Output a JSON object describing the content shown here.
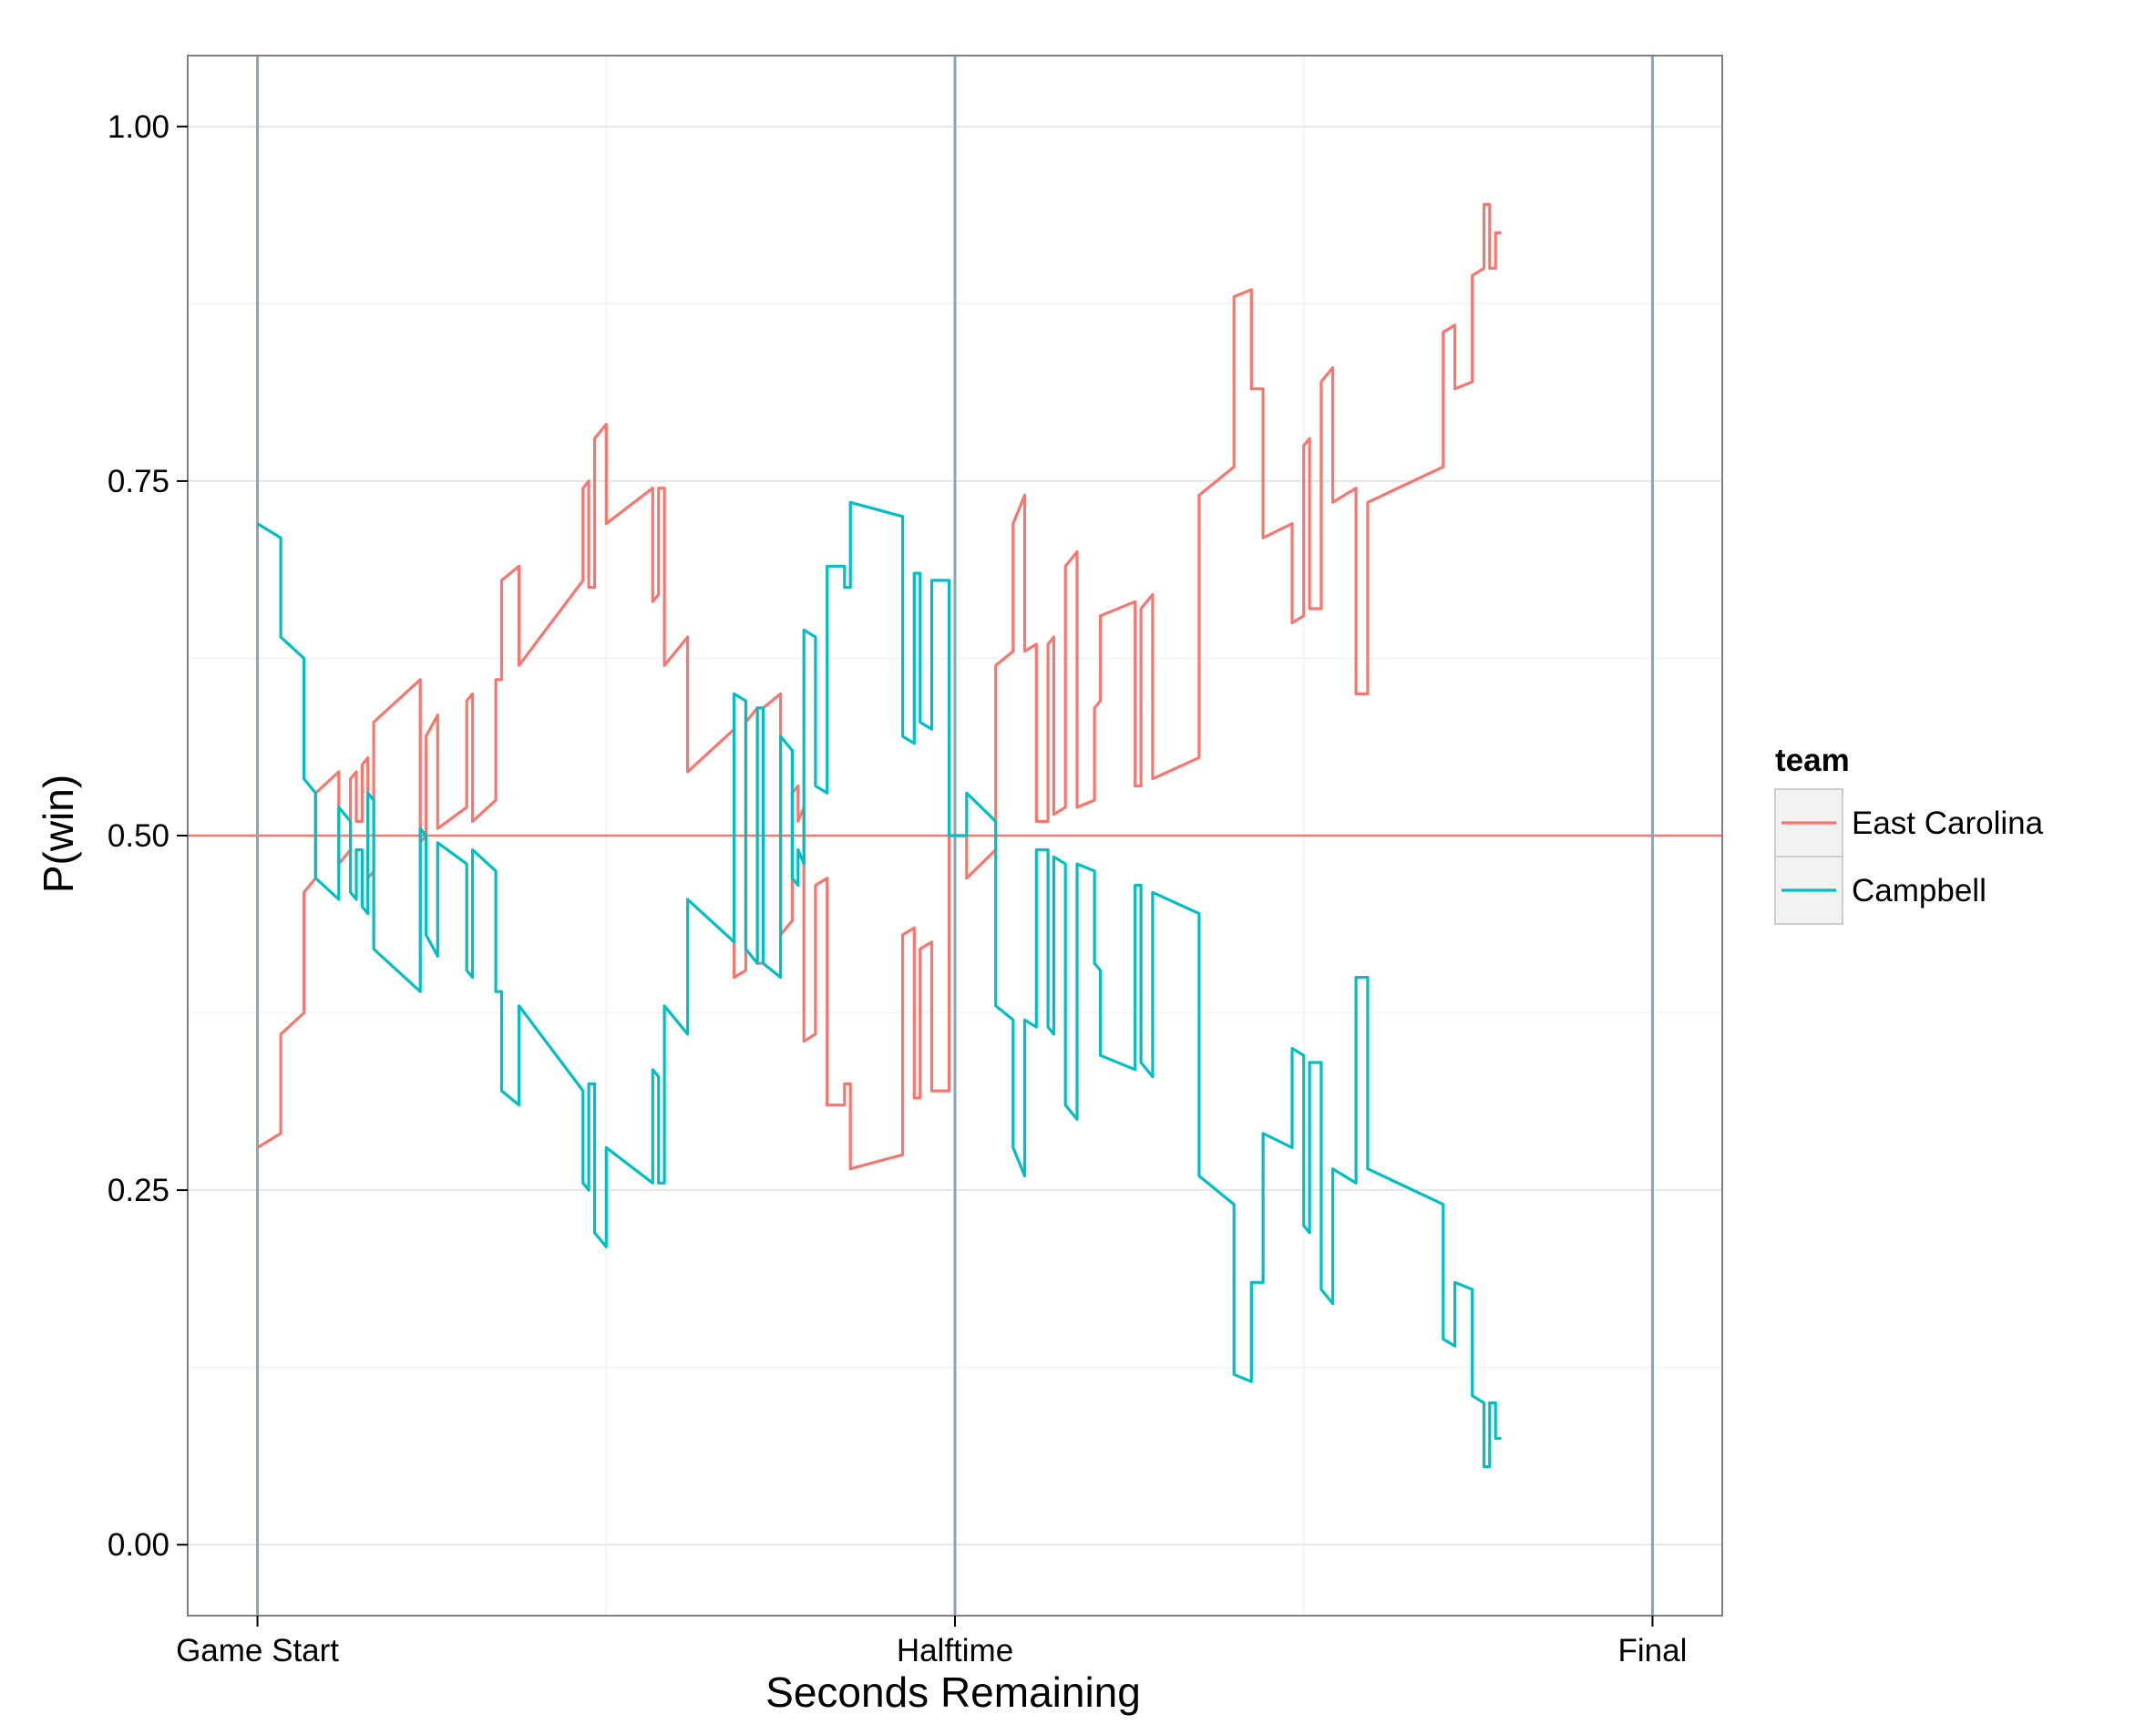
{
  "chart_data": {
    "type": "line",
    "xlabel": "Seconds Remaining",
    "ylabel": "P(win)",
    "x_ticks": [
      "Game Start",
      "Halftime",
      "Final"
    ],
    "x_tick_values": [
      2400,
      1200,
      0
    ],
    "xlim": [
      2520,
      -120
    ],
    "ylim": [
      -0.05,
      1.05
    ],
    "y_ticks": [
      "0.00",
      "0.25",
      "0.50",
      "0.75",
      "1.00"
    ],
    "y_tick_values": [
      0,
      0.25,
      0.5,
      0.75,
      1
    ],
    "grid": true,
    "reference_line": {
      "y": 0.5,
      "color": "#F8766D"
    },
    "period_lines": {
      "x": [
        2400,
        1200,
        0
      ],
      "color": "#8EA2BA"
    },
    "legend": {
      "title": "team",
      "placement": "right",
      "entries": [
        {
          "label": "East Carolina",
          "color": "#F8766D"
        },
        {
          "label": "Campbell",
          "color": "#00BFC4"
        }
      ]
    },
    "series": [
      {
        "name": "East Carolina",
        "color": "#F8766D",
        "points": [
          [
            2400,
            0.28
          ],
          [
            2360,
            0.29
          ],
          [
            2360,
            0.36
          ],
          [
            2320,
            0.375
          ],
          [
            2320,
            0.46
          ],
          [
            2300,
            0.47
          ],
          [
            2300,
            0.53
          ],
          [
            2260,
            0.545
          ],
          [
            2260,
            0.48
          ],
          [
            2240,
            0.49
          ],
          [
            2240,
            0.54
          ],
          [
            2230,
            0.545
          ],
          [
            2230,
            0.51
          ],
          [
            2220,
            0.51
          ],
          [
            2220,
            0.55
          ],
          [
            2210,
            0.555
          ],
          [
            2210,
            0.47
          ],
          [
            2200,
            0.475
          ],
          [
            2200,
            0.58
          ],
          [
            2120,
            0.61
          ],
          [
            2120,
            0.495
          ],
          [
            2110,
            0.5
          ],
          [
            2110,
            0.57
          ],
          [
            2090,
            0.585
          ],
          [
            2090,
            0.505
          ],
          [
            2040,
            0.52
          ],
          [
            2040,
            0.595
          ],
          [
            2030,
            0.6
          ],
          [
            2030,
            0.51
          ],
          [
            1990,
            0.525
          ],
          [
            1990,
            0.61
          ],
          [
            1980,
            0.61
          ],
          [
            1980,
            0.68
          ],
          [
            1950,
            0.69
          ],
          [
            1950,
            0.62
          ],
          [
            1840,
            0.68
          ],
          [
            1840,
            0.745
          ],
          [
            1830,
            0.75
          ],
          [
            1830,
            0.675
          ],
          [
            1820,
            0.675
          ],
          [
            1820,
            0.78
          ],
          [
            1800,
            0.79
          ],
          [
            1800,
            0.72
          ],
          [
            1720,
            0.745
          ],
          [
            1720,
            0.665
          ],
          [
            1710,
            0.67
          ],
          [
            1710,
            0.745
          ],
          [
            1700,
            0.745
          ],
          [
            1700,
            0.62
          ],
          [
            1660,
            0.64
          ],
          [
            1660,
            0.545
          ],
          [
            1580,
            0.575
          ],
          [
            1580,
            0.4
          ],
          [
            1560,
            0.405
          ],
          [
            1560,
            0.58
          ],
          [
            1540,
            0.59
          ],
          [
            1540,
            0.41
          ],
          [
            1530,
            0.41
          ],
          [
            1530,
            0.59
          ],
          [
            1500,
            0.6
          ],
          [
            1500,
            0.43
          ],
          [
            1480,
            0.44
          ],
          [
            1480,
            0.53
          ],
          [
            1470,
            0.535
          ],
          [
            1470,
            0.51
          ],
          [
            1460,
            0.52
          ],
          [
            1460,
            0.355
          ],
          [
            1440,
            0.36
          ],
          [
            1440,
            0.465
          ],
          [
            1420,
            0.47
          ],
          [
            1420,
            0.31
          ],
          [
            1390,
            0.31
          ],
          [
            1390,
            0.325
          ],
          [
            1380,
            0.325
          ],
          [
            1380,
            0.265
          ],
          [
            1290,
            0.275
          ],
          [
            1290,
            0.43
          ],
          [
            1270,
            0.435
          ],
          [
            1270,
            0.315
          ],
          [
            1260,
            0.315
          ],
          [
            1260,
            0.42
          ],
          [
            1240,
            0.425
          ],
          [
            1240,
            0.32
          ],
          [
            1210,
            0.32
          ],
          [
            1210,
            0.5
          ],
          [
            1180,
            0.5
          ],
          [
            1180,
            0.47
          ],
          [
            1130,
            0.49
          ],
          [
            1130,
            0.62
          ],
          [
            1100,
            0.63
          ],
          [
            1100,
            0.72
          ],
          [
            1080,
            0.74
          ],
          [
            1080,
            0.63
          ],
          [
            1060,
            0.635
          ],
          [
            1060,
            0.51
          ],
          [
            1040,
            0.51
          ],
          [
            1040,
            0.635
          ],
          [
            1030,
            0.64
          ],
          [
            1030,
            0.515
          ],
          [
            1010,
            0.52
          ],
          [
            1010,
            0.69
          ],
          [
            990,
            0.7
          ],
          [
            990,
            0.52
          ],
          [
            960,
            0.525
          ],
          [
            960,
            0.59
          ],
          [
            950,
            0.595
          ],
          [
            950,
            0.655
          ],
          [
            890,
            0.665
          ],
          [
            890,
            0.535
          ],
          [
            880,
            0.535
          ],
          [
            880,
            0.66
          ],
          [
            860,
            0.67
          ],
          [
            860,
            0.54
          ],
          [
            780,
            0.555
          ],
          [
            780,
            0.74
          ],
          [
            720,
            0.76
          ],
          [
            720,
            0.88
          ],
          [
            690,
            0.885
          ],
          [
            690,
            0.815
          ],
          [
            670,
            0.815
          ],
          [
            670,
            0.71
          ],
          [
            620,
            0.72
          ],
          [
            620,
            0.65
          ],
          [
            600,
            0.655
          ],
          [
            600,
            0.775
          ],
          [
            590,
            0.78
          ],
          [
            590,
            0.66
          ],
          [
            570,
            0.66
          ],
          [
            570,
            0.82
          ],
          [
            550,
            0.83
          ],
          [
            550,
            0.735
          ],
          [
            510,
            0.745
          ],
          [
            510,
            0.6
          ],
          [
            490,
            0.6
          ],
          [
            490,
            0.735
          ],
          [
            360,
            0.76
          ],
          [
            360,
            0.855
          ],
          [
            340,
            0.86
          ],
          [
            340,
            0.815
          ],
          [
            310,
            0.82
          ],
          [
            310,
            0.895
          ],
          [
            290,
            0.9
          ],
          [
            290,
            0.945
          ],
          [
            280,
            0.945
          ],
          [
            280,
            0.9
          ],
          [
            270,
            0.9
          ],
          [
            270,
            0.925
          ],
          [
            260,
            0.925
          ]
        ]
      },
      {
        "name": "Campbell",
        "color": "#00BFC4",
        "points": [
          [
            2400,
            0.72
          ],
          [
            2360,
            0.71
          ],
          [
            2360,
            0.64
          ],
          [
            2320,
            0.625
          ],
          [
            2320,
            0.54
          ],
          [
            2300,
            0.53
          ],
          [
            2300,
            0.47
          ],
          [
            2260,
            0.455
          ],
          [
            2260,
            0.52
          ],
          [
            2240,
            0.51
          ],
          [
            2240,
            0.46
          ],
          [
            2230,
            0.455
          ],
          [
            2230,
            0.49
          ],
          [
            2220,
            0.49
          ],
          [
            2220,
            0.45
          ],
          [
            2210,
            0.445
          ],
          [
            2210,
            0.53
          ],
          [
            2200,
            0.525
          ],
          [
            2200,
            0.42
          ],
          [
            2120,
            0.39
          ],
          [
            2120,
            0.505
          ],
          [
            2110,
            0.5
          ],
          [
            2110,
            0.43
          ],
          [
            2090,
            0.415
          ],
          [
            2090,
            0.495
          ],
          [
            2040,
            0.48
          ],
          [
            2040,
            0.405
          ],
          [
            2030,
            0.4
          ],
          [
            2030,
            0.49
          ],
          [
            1990,
            0.475
          ],
          [
            1990,
            0.39
          ],
          [
            1980,
            0.39
          ],
          [
            1980,
            0.32
          ],
          [
            1950,
            0.31
          ],
          [
            1950,
            0.38
          ],
          [
            1840,
            0.32
          ],
          [
            1840,
            0.255
          ],
          [
            1830,
            0.25
          ],
          [
            1830,
            0.325
          ],
          [
            1820,
            0.325
          ],
          [
            1820,
            0.22
          ],
          [
            1800,
            0.21
          ],
          [
            1800,
            0.28
          ],
          [
            1720,
            0.255
          ],
          [
            1720,
            0.335
          ],
          [
            1710,
            0.33
          ],
          [
            1710,
            0.255
          ],
          [
            1700,
            0.255
          ],
          [
            1700,
            0.38
          ],
          [
            1660,
            0.36
          ],
          [
            1660,
            0.455
          ],
          [
            1580,
            0.425
          ],
          [
            1580,
            0.6
          ],
          [
            1560,
            0.595
          ],
          [
            1560,
            0.42
          ],
          [
            1540,
            0.41
          ],
          [
            1540,
            0.59
          ],
          [
            1530,
            0.59
          ],
          [
            1530,
            0.41
          ],
          [
            1500,
            0.4
          ],
          [
            1500,
            0.57
          ],
          [
            1480,
            0.56
          ],
          [
            1480,
            0.47
          ],
          [
            1470,
            0.465
          ],
          [
            1470,
            0.49
          ],
          [
            1460,
            0.48
          ],
          [
            1460,
            0.645
          ],
          [
            1440,
            0.64
          ],
          [
            1440,
            0.535
          ],
          [
            1420,
            0.53
          ],
          [
            1420,
            0.69
          ],
          [
            1390,
            0.69
          ],
          [
            1390,
            0.675
          ],
          [
            1380,
            0.675
          ],
          [
            1380,
            0.735
          ],
          [
            1290,
            0.725
          ],
          [
            1290,
            0.57
          ],
          [
            1270,
            0.565
          ],
          [
            1270,
            0.685
          ],
          [
            1260,
            0.685
          ],
          [
            1260,
            0.58
          ],
          [
            1240,
            0.575
          ],
          [
            1240,
            0.68
          ],
          [
            1210,
            0.68
          ],
          [
            1210,
            0.5
          ],
          [
            1180,
            0.5
          ],
          [
            1180,
            0.53
          ],
          [
            1130,
            0.51
          ],
          [
            1130,
            0.38
          ],
          [
            1100,
            0.37
          ],
          [
            1100,
            0.28
          ],
          [
            1080,
            0.26
          ],
          [
            1080,
            0.37
          ],
          [
            1060,
            0.365
          ],
          [
            1060,
            0.49
          ],
          [
            1040,
            0.49
          ],
          [
            1040,
            0.365
          ],
          [
            1030,
            0.36
          ],
          [
            1030,
            0.485
          ],
          [
            1010,
            0.48
          ],
          [
            1010,
            0.31
          ],
          [
            990,
            0.3
          ],
          [
            990,
            0.48
          ],
          [
            960,
            0.475
          ],
          [
            960,
            0.41
          ],
          [
            950,
            0.405
          ],
          [
            950,
            0.345
          ],
          [
            890,
            0.335
          ],
          [
            890,
            0.465
          ],
          [
            880,
            0.465
          ],
          [
            880,
            0.34
          ],
          [
            860,
            0.33
          ],
          [
            860,
            0.46
          ],
          [
            780,
            0.445
          ],
          [
            780,
            0.26
          ],
          [
            720,
            0.24
          ],
          [
            720,
            0.12
          ],
          [
            690,
            0.115
          ],
          [
            690,
            0.185
          ],
          [
            670,
            0.185
          ],
          [
            670,
            0.29
          ],
          [
            620,
            0.28
          ],
          [
            620,
            0.35
          ],
          [
            600,
            0.345
          ],
          [
            600,
            0.225
          ],
          [
            590,
            0.22
          ],
          [
            590,
            0.34
          ],
          [
            570,
            0.34
          ],
          [
            570,
            0.18
          ],
          [
            550,
            0.17
          ],
          [
            550,
            0.265
          ],
          [
            510,
            0.255
          ],
          [
            510,
            0.4
          ],
          [
            490,
            0.4
          ],
          [
            490,
            0.265
          ],
          [
            360,
            0.24
          ],
          [
            360,
            0.145
          ],
          [
            340,
            0.14
          ],
          [
            340,
            0.185
          ],
          [
            310,
            0.18
          ],
          [
            310,
            0.105
          ],
          [
            290,
            0.1
          ],
          [
            290,
            0.055
          ],
          [
            280,
            0.055
          ],
          [
            280,
            0.1
          ],
          [
            270,
            0.1
          ],
          [
            270,
            0.075
          ],
          [
            260,
            0.075
          ]
        ]
      }
    ]
  }
}
